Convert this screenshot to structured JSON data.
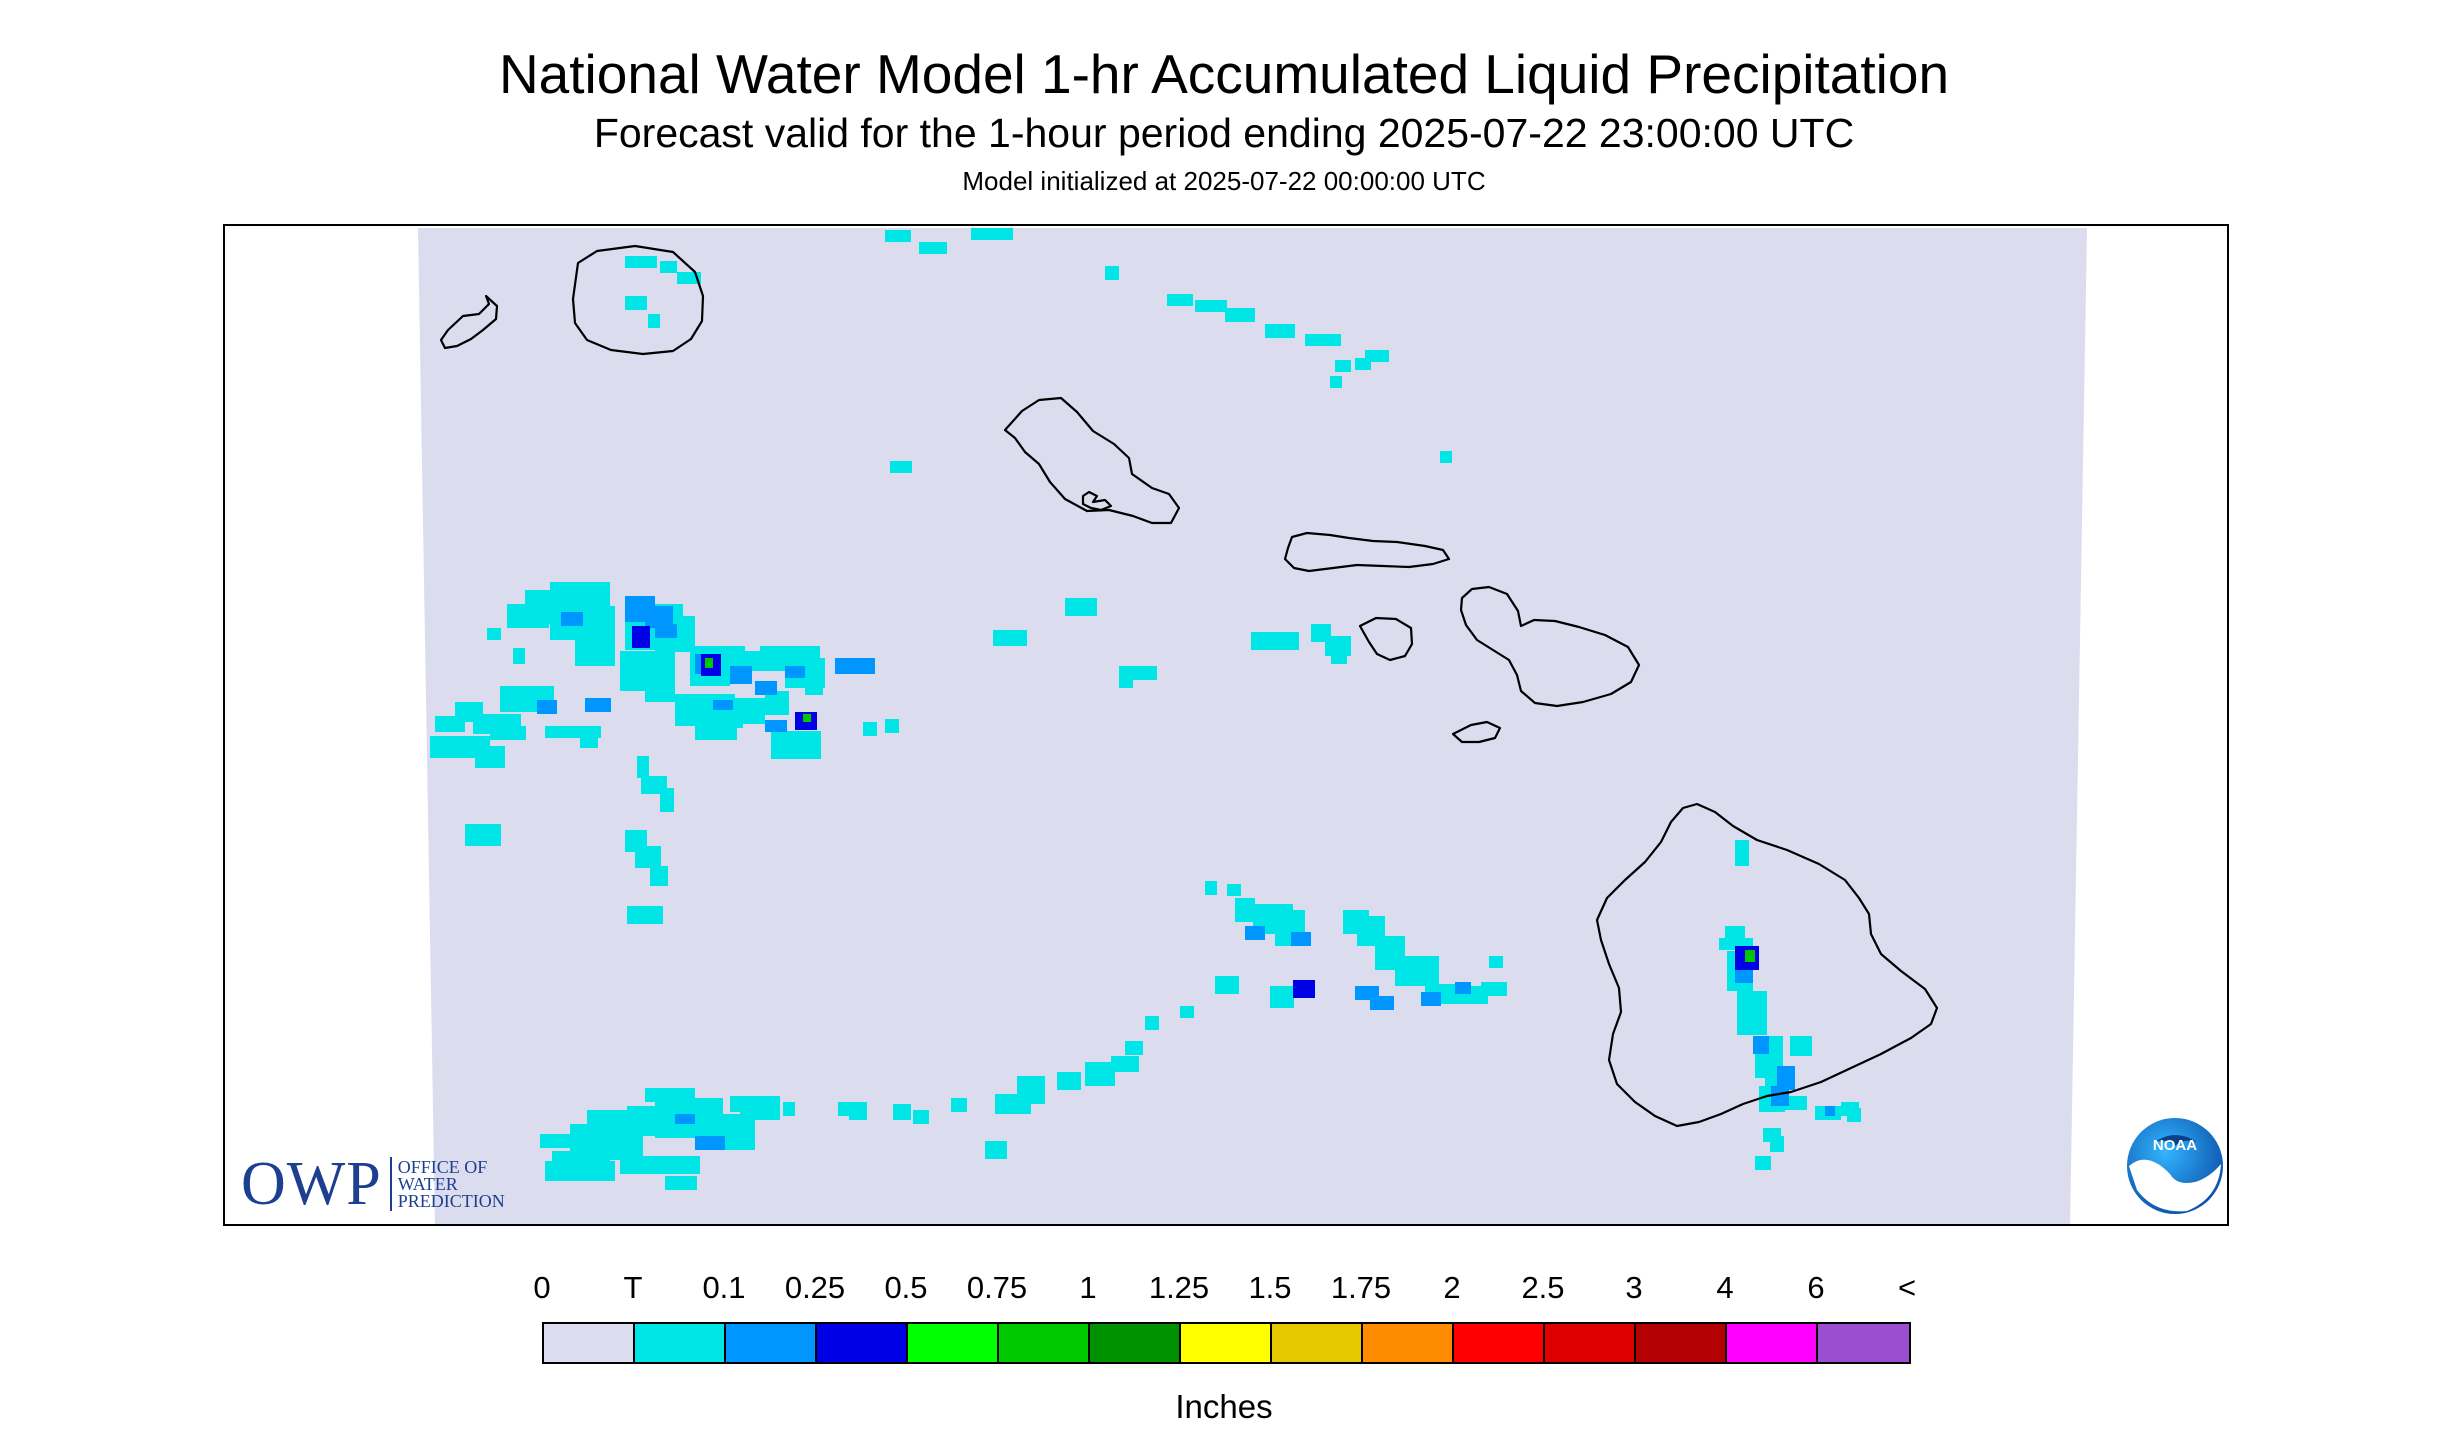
{
  "title": "National Water Model 1-hr Accumulated Liquid Precipitation",
  "subtitle": "Forecast valid for the 1-hour period ending 2025-07-22 23:00:00 UTC",
  "init_line": "Model initialized at 2025-07-22 00:00:00 UTC",
  "map": {
    "region": "Hawaiian Islands",
    "background_color": "#dcdcef",
    "coastline_color": "#000000",
    "islands": [
      "Niihau",
      "Kauai",
      "Oahu",
      "Molokai",
      "Lanai",
      "Maui",
      "Kahoolawe",
      "Hawaii"
    ]
  },
  "logos": {
    "owp_mark": "OWP",
    "owp_text": [
      "OFFICE OF",
      "WATER",
      "PREDICTION"
    ],
    "noaa_text": "NOAA"
  },
  "legend": {
    "labels": [
      "0",
      "T",
      "0.1",
      "0.25",
      "0.5",
      "0.75",
      "1",
      "1.25",
      "1.5",
      "1.75",
      "2",
      "2.5",
      "3",
      "4",
      "6",
      "<"
    ],
    "colors": [
      "#dcdcef",
      "#00e5e5",
      "#0096ff",
      "#0000e6",
      "#00ff00",
      "#00c800",
      "#009100",
      "#ffff00",
      "#e6c800",
      "#ff8c00",
      "#ff0000",
      "#dc0000",
      "#b40000",
      "#ff00ff",
      "#9a4fd0"
    ],
    "units": "Inches"
  }
}
